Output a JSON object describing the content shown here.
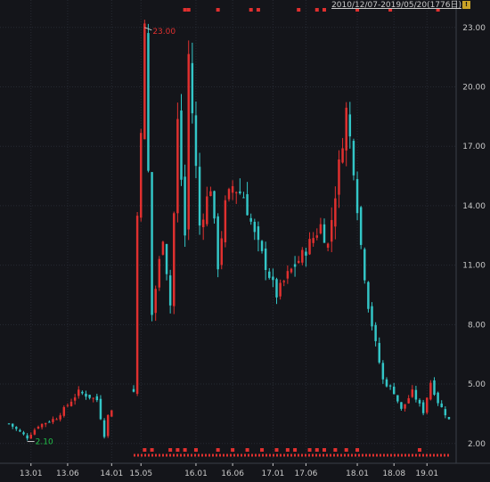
{
  "header": {
    "date_range": "2010/12/07-2019/05/20(1776日)",
    "range_button_label": "!"
  },
  "colors": {
    "background": "#14151a",
    "grid": "#262a33",
    "up": "#e0302f",
    "down": "#33c6c7",
    "axis_text": "#c9c9c9",
    "max_label": "#e0302f",
    "min_label": "#22c24a",
    "marker": "#e0302f"
  },
  "chart_data": {
    "type": "candlestick",
    "title": "",
    "xlabel": "",
    "ylabel": "",
    "ylim": [
      1.0,
      23.8
    ],
    "y_ticks": [
      "23.00",
      "20.00",
      "17.00",
      "14.00",
      "11.00",
      "8.00",
      "5.00",
      "2.00"
    ],
    "x_ticks": [
      "13.01",
      "13.06",
      "14.01",
      "15.05",
      "16.01",
      "16.06",
      "17.01",
      "17.06",
      "18.01",
      "18.08",
      "19.01"
    ],
    "x_tick_index": [
      6,
      16,
      28,
      36,
      51,
      61,
      72,
      81,
      95,
      105,
      114
    ],
    "n_periods": 121,
    "trend": [
      [
        0,
        3.0
      ],
      [
        5,
        2.3
      ],
      [
        8,
        2.9
      ],
      [
        13,
        3.3
      ],
      [
        19,
        4.6
      ],
      [
        24,
        4.2
      ],
      [
        26,
        2.4
      ],
      [
        27,
        3.4
      ],
      [
        31,
        4.8
      ],
      [
        34,
        4.6
      ],
      [
        35,
        13.5
      ],
      [
        37,
        22.8
      ],
      [
        39,
        8.5
      ],
      [
        42,
        12.5
      ],
      [
        44,
        9.0
      ],
      [
        46,
        18.2
      ],
      [
        48,
        12.5
      ],
      [
        49,
        21.6
      ],
      [
        52,
        13.0
      ],
      [
        55,
        15.0
      ],
      [
        57,
        11.0
      ],
      [
        59,
        14.0
      ],
      [
        61,
        15.0
      ],
      [
        64,
        14.5
      ],
      [
        67,
        12.5
      ],
      [
        70,
        11.0
      ],
      [
        73,
        9.5
      ],
      [
        76,
        10.5
      ],
      [
        80,
        11.5
      ],
      [
        85,
        13.0
      ],
      [
        87,
        12.0
      ],
      [
        90,
        16.0
      ],
      [
        92,
        18.8
      ],
      [
        94,
        16.0
      ],
      [
        96,
        12.0
      ],
      [
        98,
        9.0
      ],
      [
        100,
        7.0
      ],
      [
        102,
        5.2
      ],
      [
        105,
        4.6
      ],
      [
        107,
        3.7
      ],
      [
        110,
        4.6
      ],
      [
        113,
        3.6
      ],
      [
        115,
        5.1
      ],
      [
        117,
        4.1
      ],
      [
        120,
        3.2
      ]
    ],
    "max_value": "23.00",
    "max_index": 37,
    "min_value": "2.10",
    "min_index": 5,
    "gap_range": [
      29,
      33
    ],
    "top_marker_index": [
      48,
      49,
      57,
      66,
      68,
      79,
      84,
      86,
      95,
      104,
      117
    ],
    "bottom_marker_index": [
      37,
      39,
      44,
      46,
      48,
      51,
      57,
      61,
      65,
      69,
      73,
      76,
      78,
      82,
      84,
      86,
      89,
      92,
      95,
      112
    ]
  }
}
